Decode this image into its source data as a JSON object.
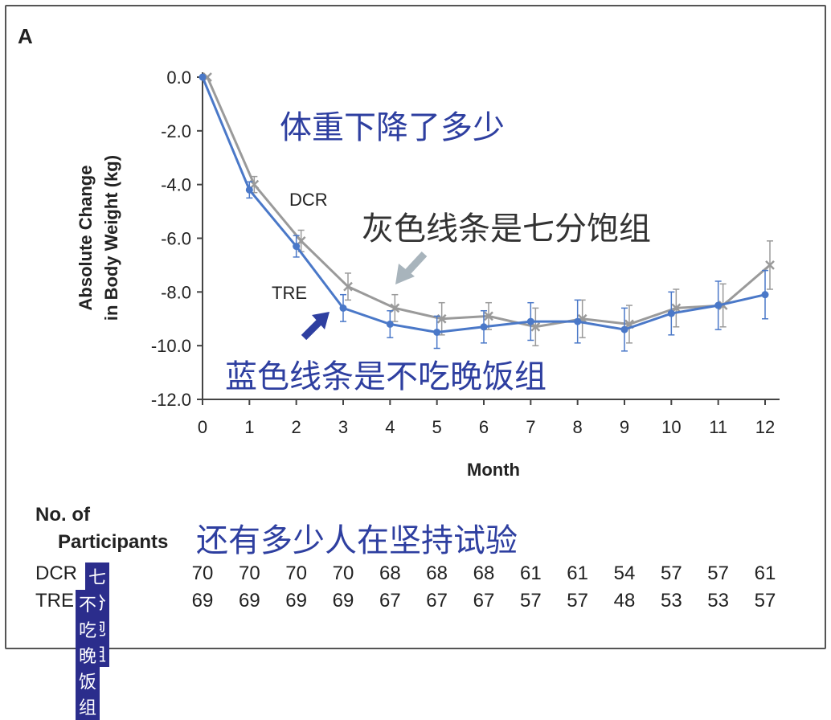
{
  "panel_label": "A",
  "annotations": {
    "title_cn": "体重下降了多少",
    "gray_cn": "灰色线条是七分饱组",
    "blue_cn": "蓝色线条是不吃晚饭组",
    "participants_cn": "还有多少人在坚持试验"
  },
  "colors": {
    "dcr": "#9a9a9a",
    "tre": "#4a78c8",
    "annotation": "#2e3fa0",
    "tag_bg": "#2b2d8c"
  },
  "chart_data": {
    "type": "line",
    "xlabel": "Month",
    "ylabel_line1": "Absolute Change",
    "ylabel_line2": "in Body Weight (kg)",
    "x": [
      0,
      1,
      2,
      3,
      4,
      5,
      6,
      7,
      8,
      9,
      10,
      11,
      12
    ],
    "xlim": [
      0,
      12
    ],
    "ylim": [
      -12.0,
      0.0
    ],
    "yticks": [
      "0.0",
      "-2.0",
      "-4.0",
      "-6.0",
      "-8.0",
      "-10.0",
      "-12.0"
    ],
    "series": [
      {
        "name": "DCR",
        "values": [
          0.0,
          -4.0,
          -6.1,
          -7.8,
          -8.6,
          -9.0,
          -8.9,
          -9.3,
          -9.0,
          -9.2,
          -8.6,
          -8.5,
          -7.0
        ],
        "err": [
          0,
          0.3,
          0.4,
          0.5,
          0.5,
          0.6,
          0.5,
          0.7,
          0.7,
          0.7,
          0.7,
          0.8,
          0.9
        ]
      },
      {
        "name": "TRE",
        "values": [
          0.0,
          -4.2,
          -6.3,
          -8.6,
          -9.2,
          -9.5,
          -9.3,
          -9.1,
          -9.1,
          -9.4,
          -8.8,
          -8.5,
          -8.1
        ],
        "err": [
          0,
          0.3,
          0.4,
          0.5,
          0.5,
          0.6,
          0.6,
          0.7,
          0.8,
          0.8,
          0.8,
          0.9,
          0.9
        ]
      }
    ]
  },
  "participants": {
    "heading_line1": "No. of",
    "heading_line2": "Participants",
    "rows": [
      {
        "name": "DCR",
        "tag": "七分饱组",
        "counts": [
          "70",
          "70",
          "70",
          "70",
          "68",
          "68",
          "68",
          "61",
          "61",
          "54",
          "57",
          "57",
          "61"
        ]
      },
      {
        "name": "TRE",
        "tag": "不吃晚饭组",
        "counts": [
          "69",
          "69",
          "69",
          "69",
          "67",
          "67",
          "67",
          "57",
          "57",
          "48",
          "53",
          "53",
          "57"
        ]
      }
    ]
  }
}
